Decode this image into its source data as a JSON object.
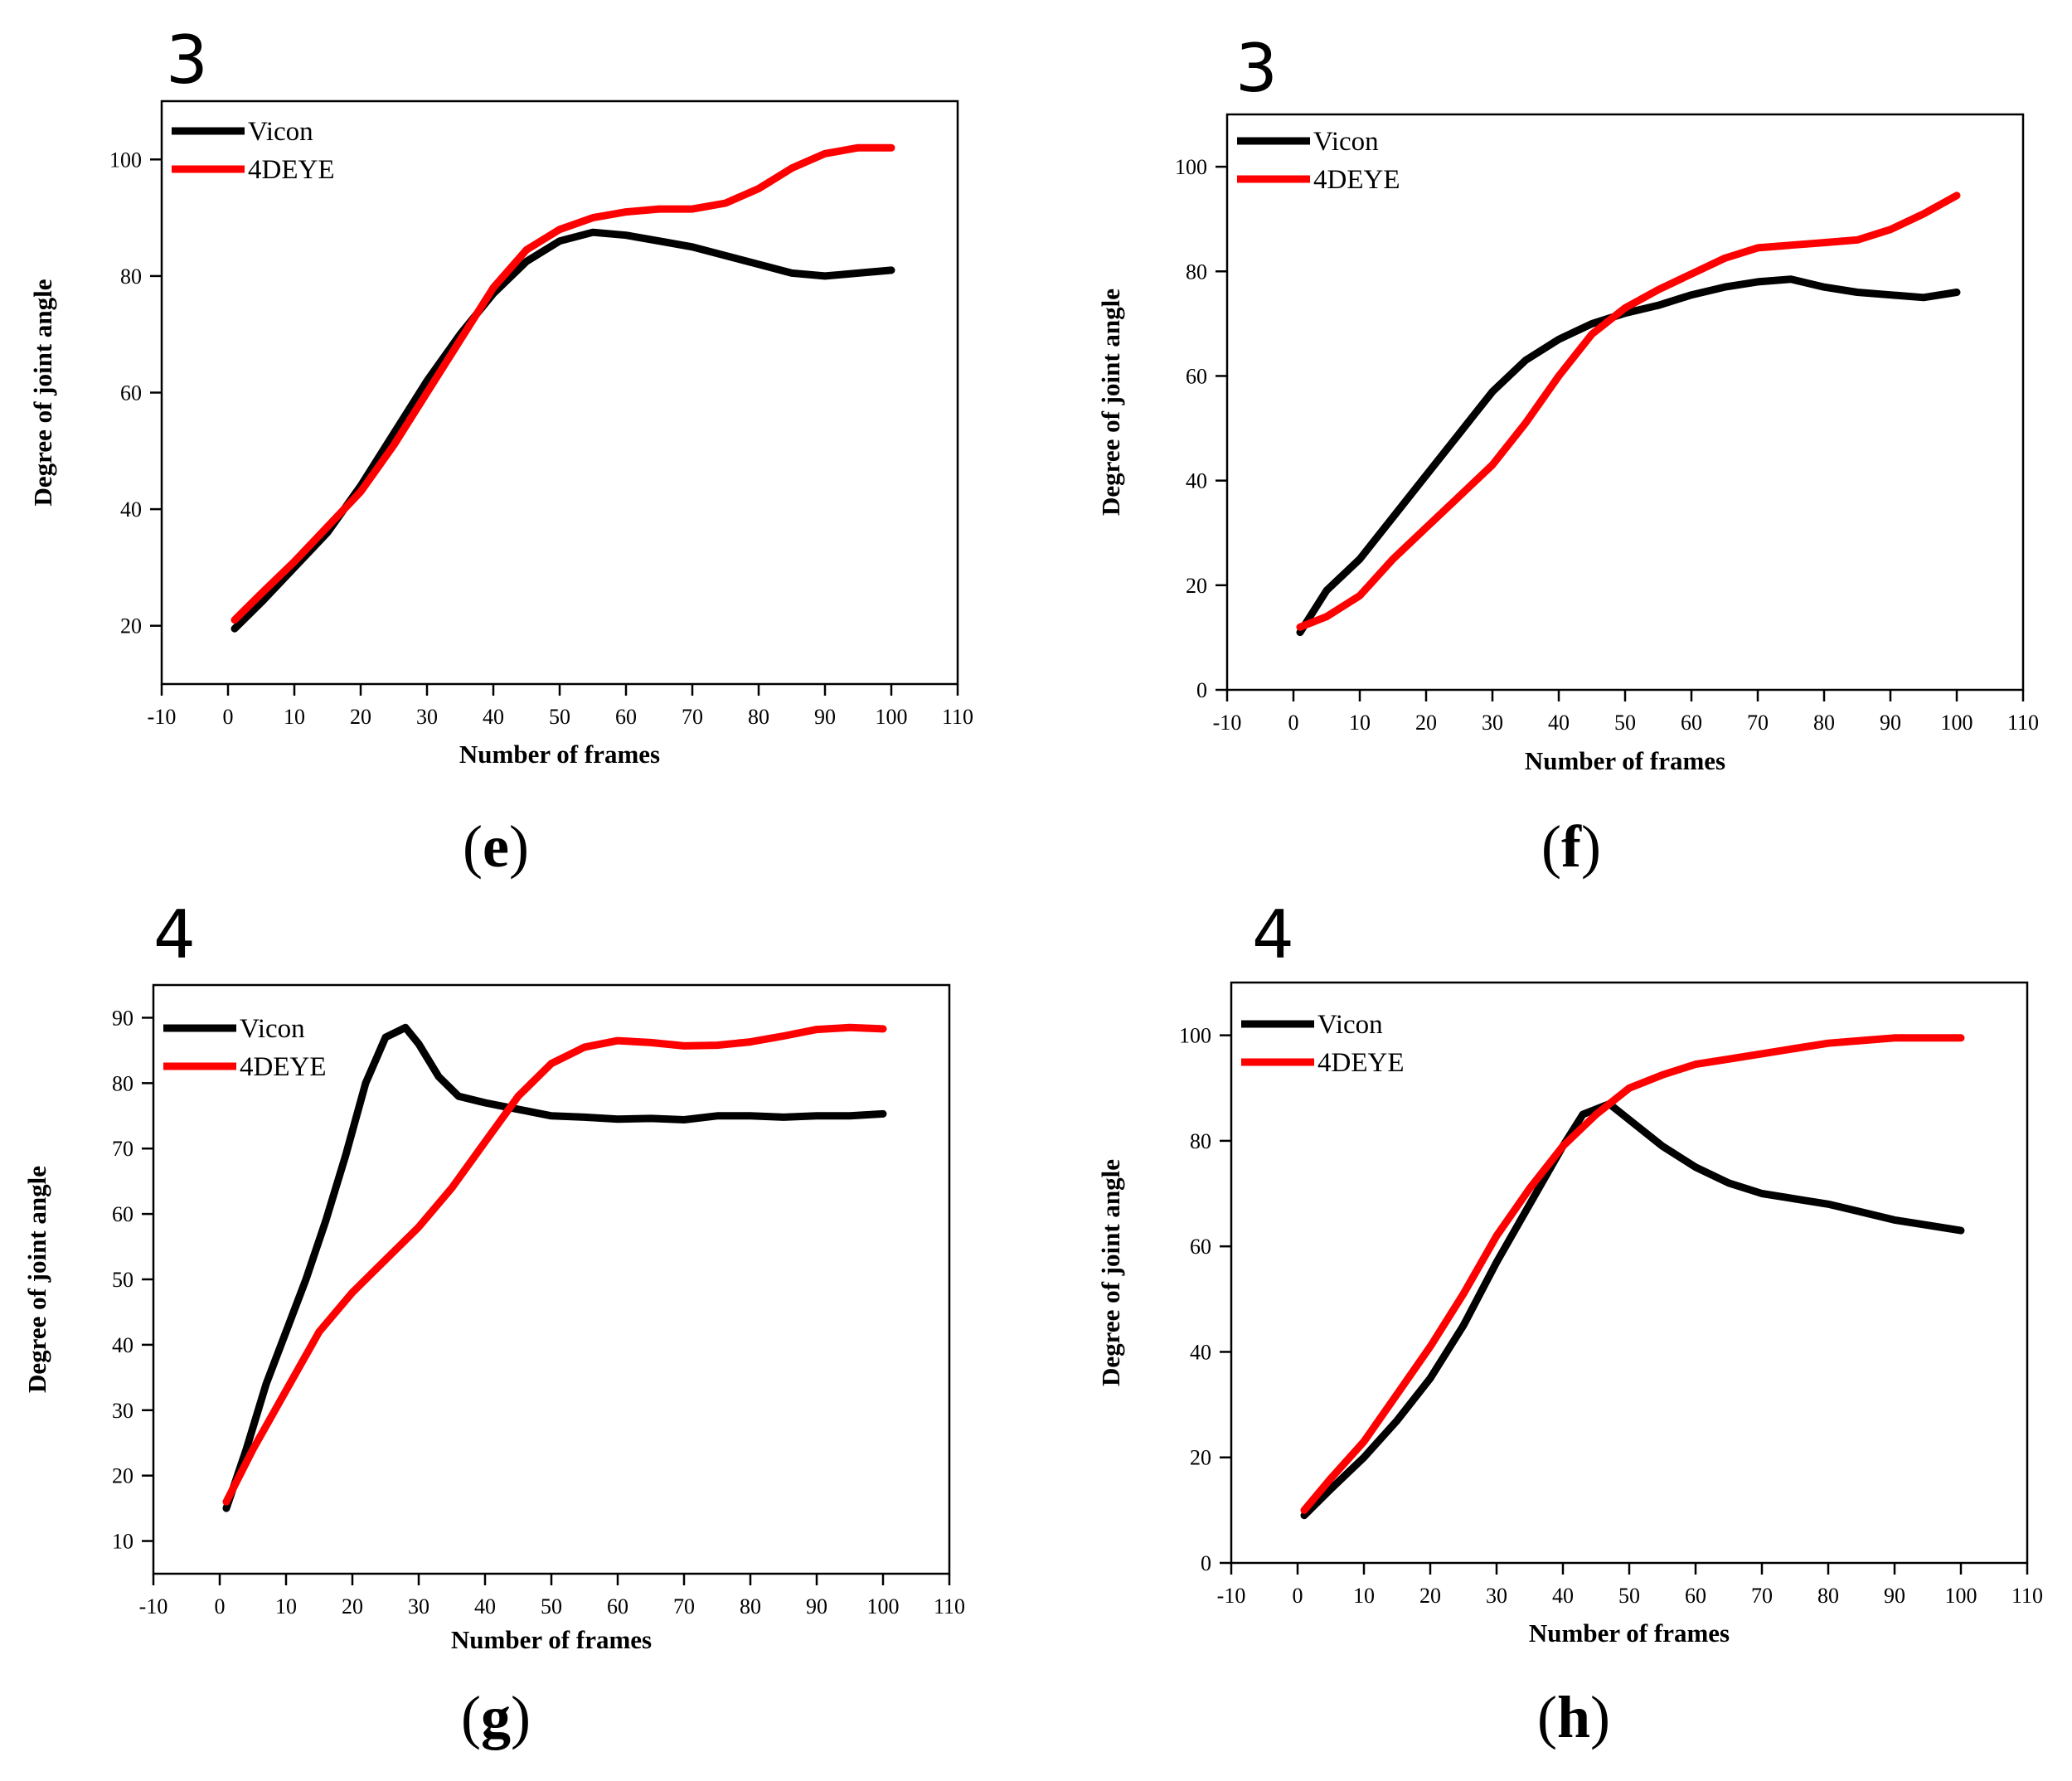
{
  "figure": {
    "colors": {
      "vicon": "#000000",
      "fourdeye": "#ff0000"
    }
  },
  "chart_data": [
    {
      "id": "e",
      "type": "line",
      "panel_number": "3",
      "panel_label": "e",
      "xlabel": "Number of frames",
      "ylabel": "Degree of joint angle",
      "xlim": [
        -10,
        110
      ],
      "ylim": [
        10,
        110
      ],
      "xticks": [
        -10,
        0,
        10,
        20,
        30,
        40,
        50,
        60,
        70,
        80,
        90,
        100,
        110
      ],
      "yticks": [
        20,
        40,
        60,
        80,
        100
      ],
      "legend_position": "top-left",
      "series": [
        {
          "name": "Vicon",
          "color": "#000000",
          "x": [
            1,
            5,
            10,
            15,
            20,
            25,
            30,
            35,
            40,
            45,
            50,
            55,
            60,
            65,
            70,
            75,
            80,
            85,
            90,
            95,
            100
          ],
          "y": [
            19.5,
            24,
            30,
            36,
            44,
            53,
            62,
            70,
            77,
            82.5,
            86,
            87.5,
            87,
            86,
            85,
            83.5,
            82,
            80.5,
            80,
            80.5,
            81
          ]
        },
        {
          "name": "4DEYE",
          "color": "#ff0000",
          "x": [
            1,
            5,
            10,
            15,
            20,
            25,
            30,
            35,
            40,
            45,
            50,
            55,
            60,
            65,
            70,
            75,
            80,
            85,
            90,
            95,
            100
          ],
          "y": [
            21,
            25.5,
            31,
            37,
            43,
            51,
            60,
            69,
            78,
            84.5,
            88,
            90,
            91,
            91.5,
            91.5,
            92.5,
            95,
            98.5,
            101,
            102,
            102
          ]
        }
      ]
    },
    {
      "id": "f",
      "type": "line",
      "panel_number": "3",
      "panel_label": "f",
      "xlabel": "Number of frames",
      "ylabel": "Degree of joint angle",
      "xlim": [
        -10,
        110
      ],
      "ylim": [
        0,
        110
      ],
      "xticks": [
        -10,
        0,
        10,
        20,
        30,
        40,
        50,
        60,
        70,
        80,
        90,
        100,
        110
      ],
      "yticks": [
        0,
        20,
        40,
        60,
        80,
        100
      ],
      "legend_position": "top-left",
      "series": [
        {
          "name": "Vicon",
          "color": "#000000",
          "x": [
            1,
            5,
            10,
            15,
            20,
            25,
            30,
            35,
            40,
            45,
            50,
            55,
            60,
            65,
            70,
            75,
            80,
            85,
            90,
            95,
            100
          ],
          "y": [
            11,
            19,
            25,
            33,
            41,
            49,
            57,
            63,
            67,
            70,
            72,
            73.5,
            75.5,
            77,
            78,
            78.5,
            77,
            76,
            75.5,
            75,
            76
          ]
        },
        {
          "name": "4DEYE",
          "color": "#ff0000",
          "x": [
            1,
            5,
            10,
            15,
            20,
            25,
            30,
            35,
            40,
            45,
            50,
            55,
            60,
            65,
            70,
            75,
            80,
            85,
            90,
            95,
            100
          ],
          "y": [
            12,
            14,
            18,
            25,
            31,
            37,
            43,
            51,
            60,
            68,
            73,
            76.5,
            79.5,
            82.5,
            84.5,
            85,
            85.5,
            86,
            88,
            91,
            94.5
          ]
        }
      ]
    },
    {
      "id": "g",
      "type": "line",
      "panel_number": "4",
      "panel_label": "g",
      "xlabel": "Number of frames",
      "ylabel": "Degree of joint angle",
      "xlim": [
        -10,
        110
      ],
      "ylim": [
        5,
        95
      ],
      "xticks": [
        -10,
        0,
        10,
        20,
        30,
        40,
        50,
        60,
        70,
        80,
        90,
        100,
        110
      ],
      "yticks": [
        10,
        20,
        30,
        40,
        50,
        60,
        70,
        80,
        90
      ],
      "legend_position": "top-left",
      "series": [
        {
          "name": "Vicon",
          "color": "#000000",
          "x": [
            1,
            4,
            7,
            10,
            13,
            16,
            19,
            22,
            25,
            28,
            30,
            33,
            36,
            40,
            45,
            50,
            55,
            60,
            65,
            70,
            75,
            80,
            85,
            90,
            95,
            100
          ],
          "y": [
            15,
            24,
            34,
            42,
            50,
            59,
            69,
            80,
            87,
            88.5,
            86,
            81,
            78,
            77,
            76,
            75,
            74.8,
            74.5,
            74.6,
            74.4,
            75,
            75,
            74.8,
            75,
            75,
            75.3
          ]
        },
        {
          "name": "4DEYE",
          "color": "#ff0000",
          "x": [
            1,
            5,
            10,
            15,
            20,
            25,
            30,
            35,
            40,
            45,
            50,
            55,
            60,
            65,
            70,
            75,
            80,
            85,
            90,
            95,
            100
          ],
          "y": [
            16,
            24,
            33,
            42,
            48,
            53,
            58,
            64,
            71,
            78,
            83,
            85.5,
            86.5,
            86.2,
            85.7,
            85.8,
            86.3,
            87.2,
            88.2,
            88.5,
            88.3
          ]
        }
      ]
    },
    {
      "id": "h",
      "type": "line",
      "panel_number": "4",
      "panel_label": "h",
      "xlabel": "Number of frames",
      "ylabel": "Degree of joint angle",
      "xlim": [
        -10,
        110
      ],
      "ylim": [
        0,
        110
      ],
      "xticks": [
        -10,
        0,
        10,
        20,
        30,
        40,
        50,
        60,
        70,
        80,
        90,
        100,
        110
      ],
      "yticks": [
        0,
        20,
        40,
        60,
        80,
        100
      ],
      "legend_position": "top-left",
      "series": [
        {
          "name": "Vicon",
          "color": "#000000",
          "x": [
            1,
            5,
            10,
            15,
            20,
            25,
            30,
            35,
            40,
            43,
            47,
            50,
            55,
            60,
            65,
            70,
            75,
            80,
            85,
            90,
            95,
            100
          ],
          "y": [
            9,
            14,
            20,
            27,
            35,
            45,
            57,
            68,
            79,
            85,
            87,
            84,
            79,
            75,
            72,
            70,
            69,
            68,
            66.5,
            65,
            64,
            63
          ]
        },
        {
          "name": "4DEYE",
          "color": "#ff0000",
          "x": [
            1,
            5,
            10,
            15,
            20,
            25,
            30,
            35,
            40,
            45,
            50,
            55,
            60,
            65,
            70,
            75,
            80,
            85,
            90,
            95,
            100
          ],
          "y": [
            10,
            16,
            23,
            32,
            41,
            51,
            62,
            71,
            79,
            85,
            90,
            92.5,
            94.5,
            95.5,
            96.5,
            97.5,
            98.5,
            99,
            99.5,
            99.5,
            99.5
          ]
        }
      ]
    }
  ]
}
